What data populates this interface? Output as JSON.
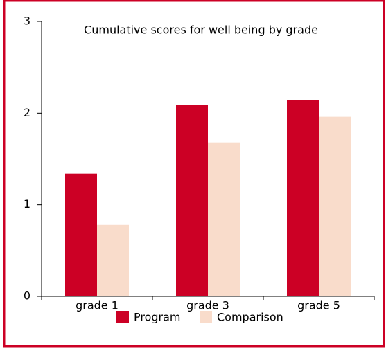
{
  "chart_data": {
    "type": "bar",
    "title": "Cumulative scores for well being by grade",
    "categories": [
      "grade 1",
      "grade 3",
      "grade 5"
    ],
    "series": [
      {
        "name": "Program",
        "color": "#cc0025",
        "values": [
          1.34,
          2.09,
          2.14
        ]
      },
      {
        "name": "Comparison",
        "color": "#f9dccb",
        "values": [
          0.78,
          1.68,
          1.96
        ]
      }
    ],
    "ylim": [
      0,
      3
    ],
    "yticks": [
      0,
      1,
      2,
      3
    ],
    "grid": false,
    "legend": "bottom"
  }
}
